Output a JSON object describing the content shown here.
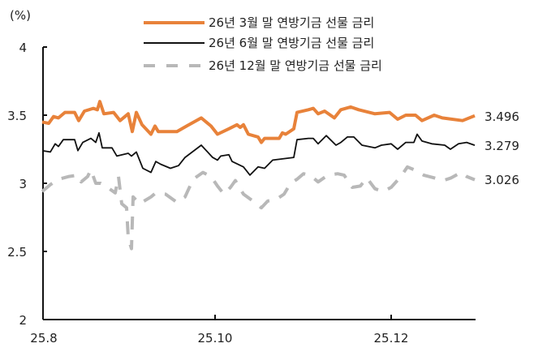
{
  "chart_data": {
    "type": "line",
    "title": "",
    "unit_label": "(%)",
    "xlabel": "",
    "ylabel": "(%)",
    "ylim": [
      2,
      4
    ],
    "yticks": [
      2,
      2.5,
      3,
      3.5,
      4
    ],
    "ytick_labels": [
      "2",
      "2.5",
      "3",
      "3.5",
      "4"
    ],
    "xtick_labels": [
      "25.8",
      "25.10",
      "25.12"
    ],
    "grid": false,
    "legend_position": "top-center",
    "series": [
      {
        "name": "26년 3월 말 연방기금 선물 금리",
        "color": "#E8823A",
        "style": "solid-thick",
        "end_label": "3.496",
        "points": [
          [
            52,
            3.45
          ],
          [
            60,
            3.44
          ],
          [
            66,
            3.49
          ],
          [
            72,
            3.48
          ],
          [
            80,
            3.52
          ],
          [
            92,
            3.52
          ],
          [
            97,
            3.46
          ],
          [
            104,
            3.53
          ],
          [
            115,
            3.55
          ],
          [
            120,
            3.54
          ],
          [
            123,
            3.6
          ],
          [
            128,
            3.51
          ],
          [
            140,
            3.52
          ],
          [
            148,
            3.46
          ],
          [
            158,
            3.51
          ],
          [
            163,
            3.38
          ],
          [
            168,
            3.52
          ],
          [
            175,
            3.43
          ],
          [
            186,
            3.36
          ],
          [
            191,
            3.42
          ],
          [
            195,
            3.38
          ],
          [
            218,
            3.38
          ],
          [
            230,
            3.42
          ],
          [
            248,
            3.48
          ],
          [
            260,
            3.42
          ],
          [
            268,
            3.36
          ],
          [
            282,
            3.4
          ],
          [
            292,
            3.43
          ],
          [
            296,
            3.41
          ],
          [
            300,
            3.43
          ],
          [
            306,
            3.36
          ],
          [
            318,
            3.34
          ],
          [
            322,
            3.3
          ],
          [
            326,
            3.33
          ],
          [
            344,
            3.33
          ],
          [
            348,
            3.37
          ],
          [
            352,
            3.36
          ],
          [
            362,
            3.4
          ],
          [
            366,
            3.52
          ],
          [
            380,
            3.54
          ],
          [
            386,
            3.55
          ],
          [
            392,
            3.51
          ],
          [
            400,
            3.53
          ],
          [
            412,
            3.48
          ],
          [
            420,
            3.54
          ],
          [
            432,
            3.56
          ],
          [
            442,
            3.54
          ],
          [
            462,
            3.51
          ],
          [
            480,
            3.52
          ],
          [
            490,
            3.47
          ],
          [
            500,
            3.5
          ],
          [
            512,
            3.5
          ],
          [
            520,
            3.46
          ],
          [
            535,
            3.5
          ],
          [
            545,
            3.48
          ],
          [
            570,
            3.46
          ],
          [
            585,
            3.496
          ]
        ]
      },
      {
        "name": "26년 6월 말 연방기금 선물 금리",
        "color": "#111111",
        "style": "solid-thin",
        "end_label": "3.279",
        "points": [
          [
            52,
            3.24
          ],
          [
            62,
            3.23
          ],
          [
            68,
            3.29
          ],
          [
            72,
            3.27
          ],
          [
            78,
            3.32
          ],
          [
            92,
            3.32
          ],
          [
            96,
            3.24
          ],
          [
            102,
            3.3
          ],
          [
            112,
            3.33
          ],
          [
            118,
            3.3
          ],
          [
            122,
            3.37
          ],
          [
            126,
            3.26
          ],
          [
            138,
            3.26
          ],
          [
            144,
            3.2
          ],
          [
            158,
            3.22
          ],
          [
            162,
            3.2
          ],
          [
            168,
            3.23
          ],
          [
            176,
            3.11
          ],
          [
            186,
            3.08
          ],
          [
            192,
            3.16
          ],
          [
            198,
            3.14
          ],
          [
            210,
            3.11
          ],
          [
            220,
            3.13
          ],
          [
            228,
            3.19
          ],
          [
            248,
            3.28
          ],
          [
            262,
            3.19
          ],
          [
            268,
            3.17
          ],
          [
            272,
            3.2
          ],
          [
            282,
            3.21
          ],
          [
            286,
            3.16
          ],
          [
            300,
            3.12
          ],
          [
            308,
            3.06
          ],
          [
            318,
            3.12
          ],
          [
            326,
            3.11
          ],
          [
            336,
            3.17
          ],
          [
            362,
            3.19
          ],
          [
            366,
            3.32
          ],
          [
            380,
            3.33
          ],
          [
            386,
            3.33
          ],
          [
            392,
            3.29
          ],
          [
            402,
            3.35
          ],
          [
            414,
            3.28
          ],
          [
            420,
            3.3
          ],
          [
            428,
            3.34
          ],
          [
            436,
            3.34
          ],
          [
            446,
            3.28
          ],
          [
            462,
            3.26
          ],
          [
            470,
            3.28
          ],
          [
            482,
            3.29
          ],
          [
            490,
            3.25
          ],
          [
            500,
            3.3
          ],
          [
            510,
            3.3
          ],
          [
            514,
            3.36
          ],
          [
            520,
            3.31
          ],
          [
            532,
            3.29
          ],
          [
            548,
            3.28
          ],
          [
            555,
            3.25
          ],
          [
            565,
            3.29
          ],
          [
            575,
            3.3
          ],
          [
            585,
            3.279
          ]
        ]
      },
      {
        "name": "26년 12월 말 연방기금 선물 금리",
        "color": "#B8B8B8",
        "style": "dashed-thick",
        "end_label": "3.026",
        "points": [
          [
            52,
            2.94
          ],
          [
            62,
            2.99
          ],
          [
            72,
            3.03
          ],
          [
            85,
            3.05
          ],
          [
            96,
            3.06
          ],
          [
            100,
            3.01
          ],
          [
            108,
            3.05
          ],
          [
            112,
            3.1
          ],
          [
            118,
            3.0
          ],
          [
            124,
            3.0
          ],
          [
            130,
            2.98
          ],
          [
            142,
            2.93
          ],
          [
            146,
            3.05
          ],
          [
            150,
            2.85
          ],
          [
            156,
            2.82
          ],
          [
            158,
            2.6
          ],
          [
            162,
            2.52
          ],
          [
            164,
            2.9
          ],
          [
            172,
            2.85
          ],
          [
            186,
            2.9
          ],
          [
            192,
            2.93
          ],
          [
            204,
            2.92
          ],
          [
            218,
            2.86
          ],
          [
            228,
            2.9
          ],
          [
            238,
            3.03
          ],
          [
            250,
            3.08
          ],
          [
            260,
            3.05
          ],
          [
            268,
            2.98
          ],
          [
            276,
            2.92
          ],
          [
            284,
            2.97
          ],
          [
            290,
            3.02
          ],
          [
            300,
            2.92
          ],
          [
            314,
            2.86
          ],
          [
            322,
            2.82
          ],
          [
            330,
            2.87
          ],
          [
            340,
            2.88
          ],
          [
            350,
            2.92
          ],
          [
            358,
            3.0
          ],
          [
            366,
            3.03
          ],
          [
            374,
            3.07
          ],
          [
            382,
            3.06
          ],
          [
            392,
            3.01
          ],
          [
            404,
            3.06
          ],
          [
            416,
            3.07
          ],
          [
            424,
            3.06
          ],
          [
            434,
            2.97
          ],
          [
            444,
            2.98
          ],
          [
            452,
            3.04
          ],
          [
            462,
            2.96
          ],
          [
            472,
            2.94
          ],
          [
            482,
            2.97
          ],
          [
            494,
            3.05
          ],
          [
            502,
            3.12
          ],
          [
            510,
            3.1
          ],
          [
            522,
            3.06
          ],
          [
            535,
            3.04
          ],
          [
            546,
            3.02
          ],
          [
            556,
            3.04
          ],
          [
            568,
            3.08
          ],
          [
            575,
            3.05
          ],
          [
            585,
            3.026
          ]
        ]
      }
    ]
  },
  "legend": {
    "items": [
      {
        "label": "26년 3월 말 연방기금 선물 금리"
      },
      {
        "label": "26년 6월 말 연방기금 선물 금리"
      },
      {
        "label": "26년 12월 말 연방기금 선물 금리"
      }
    ]
  },
  "axis": {
    "unit": "(%)",
    "y": [
      "4",
      "3.5",
      "3",
      "2.5",
      "2"
    ],
    "x": [
      "25.8",
      "25.10",
      "25.12"
    ]
  },
  "end_labels": [
    "3.496",
    "3.279",
    "3.026"
  ]
}
